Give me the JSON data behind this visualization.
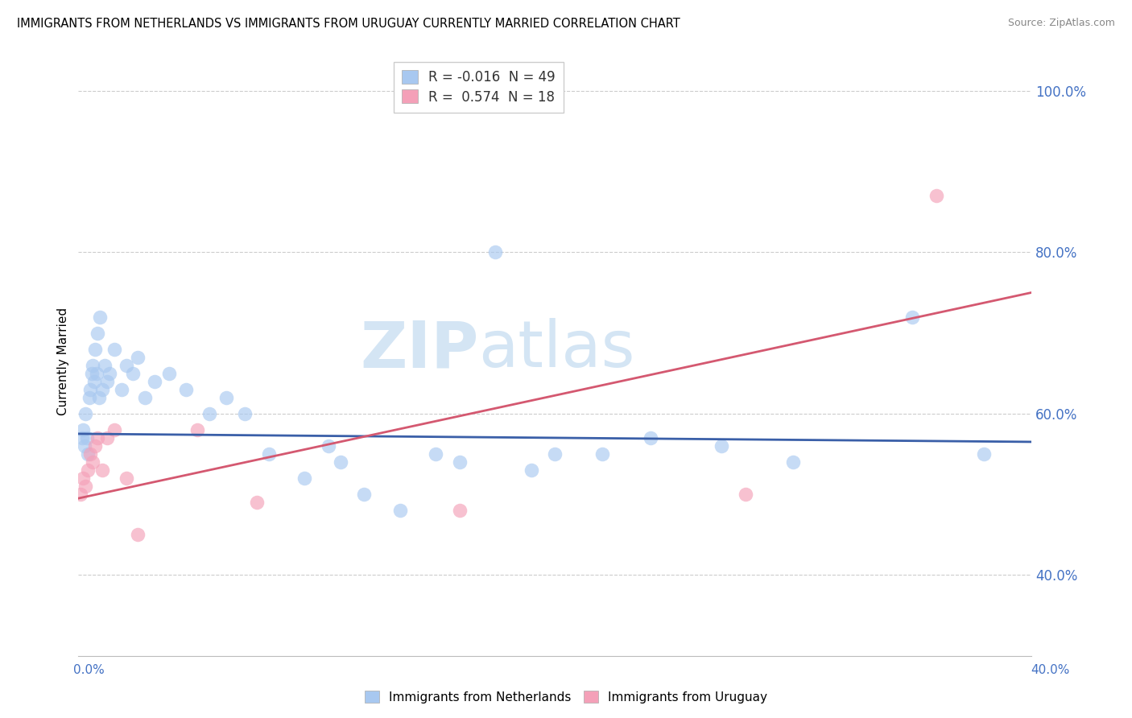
{
  "title": "IMMIGRANTS FROM NETHERLANDS VS IMMIGRANTS FROM URUGUAY CURRENTLY MARRIED CORRELATION CHART",
  "source": "Source: ZipAtlas.com",
  "ylabel": "Currently Married",
  "xlim": [
    0.0,
    40.0
  ],
  "ylim": [
    30.0,
    103.0
  ],
  "netherlands_R": -0.016,
  "netherlands_N": 49,
  "uruguay_R": 0.574,
  "uruguay_N": 18,
  "netherlands_color": "#a8c8f0",
  "uruguay_color": "#f4a0b8",
  "netherlands_line_color": "#3a5fa8",
  "uruguay_line_color": "#d45870",
  "background_color": "#ffffff",
  "watermark_text": "ZIP",
  "watermark_text2": "atlas",
  "netherlands_x": [
    0.15,
    0.2,
    0.25,
    0.3,
    0.35,
    0.4,
    0.45,
    0.5,
    0.55,
    0.6,
    0.65,
    0.7,
    0.75,
    0.8,
    0.85,
    0.9,
    1.0,
    1.1,
    1.2,
    1.3,
    1.5,
    1.8,
    2.0,
    2.3,
    2.5,
    2.8,
    3.2,
    3.8,
    4.5,
    5.5,
    6.2,
    7.0,
    8.0,
    9.5,
    10.5,
    11.0,
    12.0,
    13.5,
    15.0,
    16.0,
    17.5,
    19.0,
    20.0,
    22.0,
    24.0,
    27.0,
    30.0,
    35.0,
    38.0
  ],
  "netherlands_y": [
    57.0,
    58.0,
    56.0,
    60.0,
    57.0,
    55.0,
    62.0,
    63.0,
    65.0,
    66.0,
    64.0,
    68.0,
    65.0,
    70.0,
    62.0,
    72.0,
    63.0,
    66.0,
    64.0,
    65.0,
    68.0,
    63.0,
    66.0,
    65.0,
    67.0,
    62.0,
    64.0,
    65.0,
    63.0,
    60.0,
    62.0,
    60.0,
    55.0,
    52.0,
    56.0,
    54.0,
    50.0,
    48.0,
    55.0,
    54.0,
    80.0,
    53.0,
    55.0,
    55.0,
    57.0,
    56.0,
    54.0,
    72.0,
    55.0
  ],
  "uruguay_x": [
    0.1,
    0.2,
    0.3,
    0.4,
    0.5,
    0.6,
    0.7,
    0.8,
    1.0,
    1.2,
    1.5,
    2.0,
    2.5,
    5.0,
    7.5,
    16.0,
    28.0,
    36.0
  ],
  "uruguay_y": [
    50.0,
    52.0,
    51.0,
    53.0,
    55.0,
    54.0,
    56.0,
    57.0,
    53.0,
    57.0,
    58.0,
    52.0,
    45.0,
    58.0,
    49.0,
    48.0,
    50.0,
    87.0
  ],
  "y_ticks": [
    40.0,
    60.0,
    80.0,
    100.0
  ]
}
